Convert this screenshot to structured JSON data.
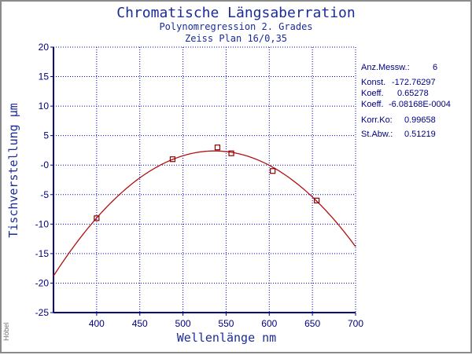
{
  "chart_data": {
    "type": "scatter",
    "title": "Chromatische Längsaberration",
    "subtitle1": "Polynomregression 2. Grades",
    "subtitle2": "Zeiss Plan 16/0,35",
    "xlabel": "Wellenlänge nm",
    "ylabel": "Tischverstellung µm",
    "xlim": [
      350,
      700
    ],
    "ylim": [
      -25,
      20
    ],
    "xticks": [
      400,
      450,
      500,
      550,
      600,
      650,
      700
    ],
    "yticks": [
      20,
      15,
      10,
      5,
      0,
      -5,
      -10,
      -15,
      -20,
      -25
    ],
    "ytick_labels": [
      "20",
      "15",
      "10",
      "5",
      "-0",
      "-5",
      "-10",
      "-15",
      "-20",
      "-25"
    ],
    "grid": true,
    "points": {
      "x": [
        400,
        488,
        540,
        556,
        604,
        655
      ],
      "y": [
        -9,
        1,
        3,
        2,
        -1,
        -6
      ]
    },
    "fit": {
      "type": "polynomial-2",
      "c0": -172.76297,
      "c1": 0.65278,
      "c2": -0.000608168
    },
    "colors": {
      "title": "#1a2b9a",
      "axis": "#000080",
      "grid": "#0000cc",
      "curve": "#b01010",
      "marker": "#8b0000"
    }
  },
  "stats": [
    {
      "label": "Anz.Messw.:",
      "value": "6"
    },
    {
      "label": "Konst.",
      "value": "-172.76297"
    },
    {
      "label": "Koeff.",
      "value": "0.65278"
    },
    {
      "label": "Koeff.",
      "value": "-6.08168E-0004"
    },
    {
      "label": "Korr.Ko:",
      "value": "0.99658"
    },
    {
      "label": "St.Abw.:",
      "value": "0.51219"
    }
  ],
  "watermark": "Höbel"
}
